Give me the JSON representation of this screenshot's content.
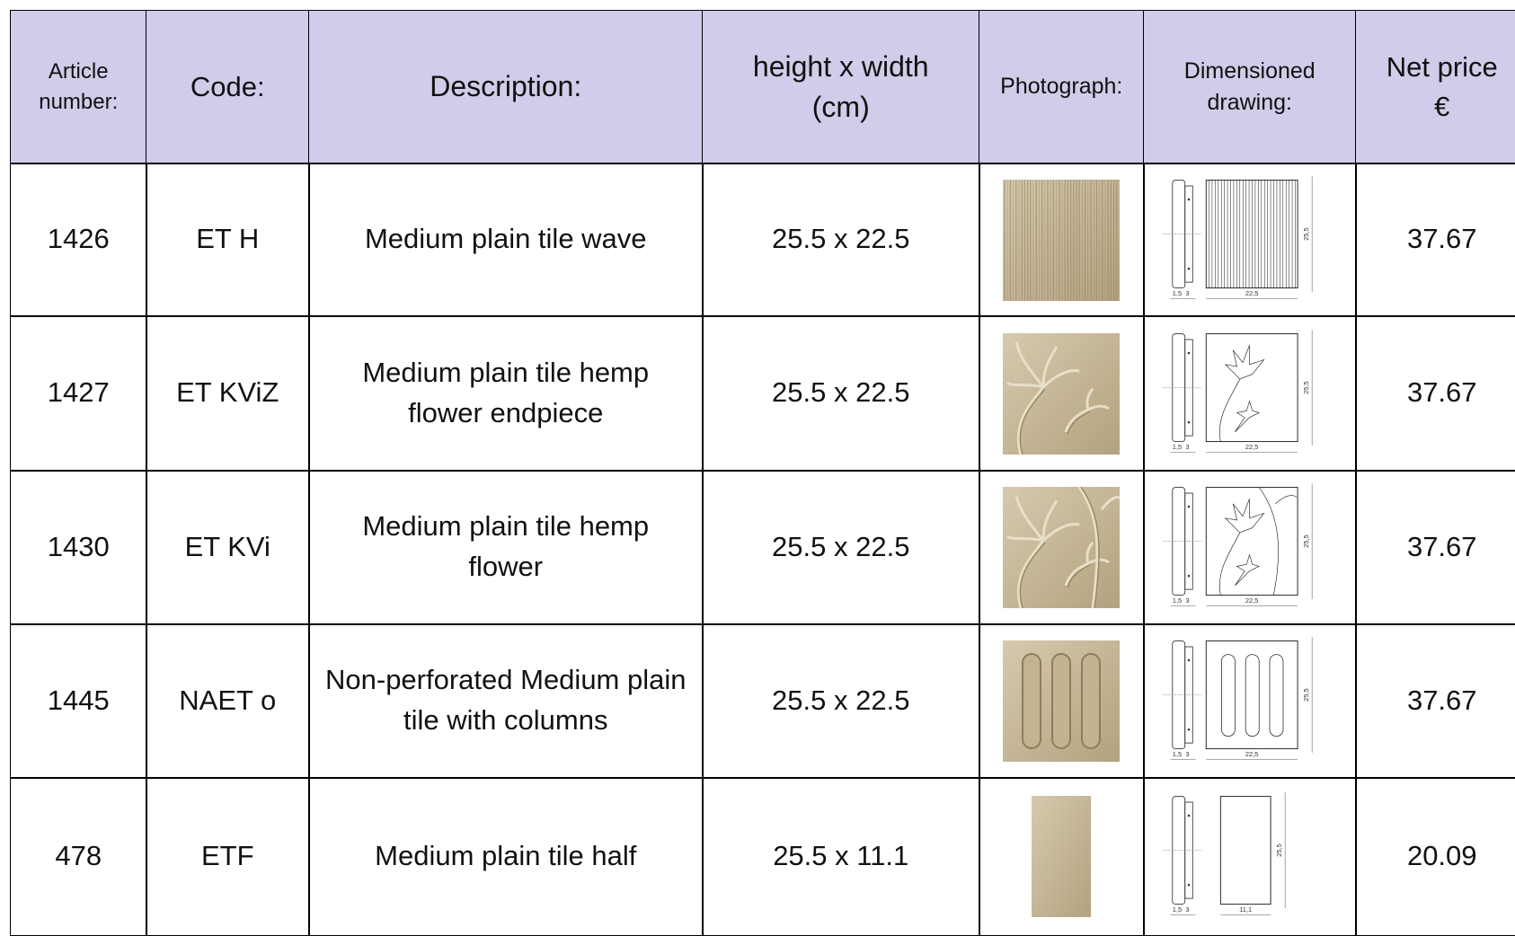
{
  "table": {
    "header": [
      "Article\nnumber:",
      "Code:",
      "Description:",
      "height x width\n(cm)",
      "Photograph:",
      "Dimensioned\ndrawing:",
      "Net price\n€"
    ],
    "rows": [
      {
        "article": "1426",
        "code": "ET H",
        "description": "Medium plain tile wave",
        "size": "25.5 x 22.5",
        "drawing": {
          "side": "1,5  3",
          "width": "22,5",
          "height": "25,5"
        },
        "price": "37.67"
      },
      {
        "article": "1427",
        "code": "ET KViZ",
        "description": "Medium plain tile hemp flower endpiece",
        "size": "25.5 x 22.5",
        "drawing": {
          "side": "1,5  3",
          "width": "22,5",
          "height": "25,5"
        },
        "price": "37.67"
      },
      {
        "article": "1430",
        "code": "ET KVi",
        "description": "Medium plain tile hemp flower",
        "size": "25.5 x 22.5",
        "drawing": {
          "side": "1,5  3",
          "width": "22,5",
          "height": "25,5"
        },
        "price": "37.67"
      },
      {
        "article": "1445",
        "code": "NAET o",
        "description": "Non-perforated Medium plain tile with columns",
        "size": "25.5 x 22.5",
        "drawing": {
          "side": "1,5  3",
          "width": "22,5",
          "height": "25,5"
        },
        "price": "37.67"
      },
      {
        "article": "478",
        "code": "ETF",
        "description": "Medium plain tile half",
        "size": "25.5 x 11.1",
        "drawing": {
          "side": "1,5  3",
          "width": "11,1",
          "height": "25,5"
        },
        "price": "20.09"
      }
    ]
  }
}
